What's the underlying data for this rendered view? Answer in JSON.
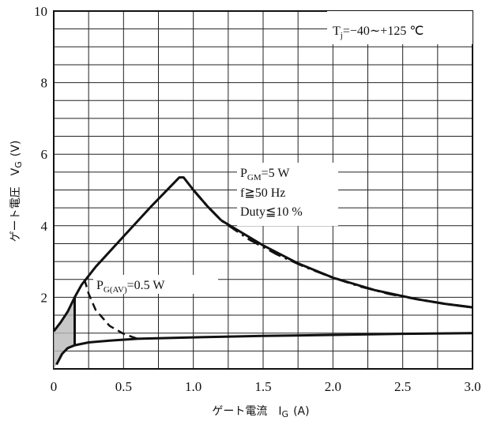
{
  "chart_data": {
    "type": "line",
    "title": "",
    "xlabel": {
      "main": "ゲート電流　I",
      "sub": "G",
      "unit": "(A)"
    },
    "ylabel": {
      "main": "ゲート電圧　V",
      "sub": "G",
      "unit": "(V)"
    },
    "xlim": [
      0,
      3.0
    ],
    "ylim": [
      0,
      10
    ],
    "x_ticks": [
      "0",
      "0.5",
      "1.0",
      "1.5",
      "2.0",
      "2.5",
      "3.0"
    ],
    "y_ticks": [
      "2",
      "4",
      "6",
      "8",
      "10"
    ],
    "grid": true,
    "annotations": {
      "tj": {
        "base": "T",
        "sub": "j",
        "rest": "=−40∼+125 ℃"
      },
      "pgm": {
        "base": "P",
        "sub": "GM",
        "rest": "=5 W"
      },
      "freq": "f≧50 Hz",
      "duty": "Duty≦10 %",
      "pgav": {
        "base": "P",
        "sub": "G(AV)",
        "rest": "=0.5 W"
      }
    },
    "series": [
      {
        "style": "solid",
        "points": [
          [
            0.02,
            0.12
          ],
          [
            0.06,
            0.42
          ],
          [
            0.1,
            0.58
          ],
          [
            0.15,
            0.66
          ],
          [
            0.25,
            0.74
          ],
          [
            0.4,
            0.79
          ],
          [
            0.6,
            0.84
          ],
          [
            1.0,
            0.88
          ],
          [
            1.5,
            0.92
          ],
          [
            2.0,
            0.95
          ],
          [
            2.5,
            0.98
          ],
          [
            3.0,
            1.0
          ]
        ]
      },
      {
        "style": "solid",
        "points": [
          [
            0.0,
            1.05
          ],
          [
            0.05,
            1.3
          ],
          [
            0.1,
            1.6
          ],
          [
            0.15,
            2.0
          ],
          [
            0.2,
            2.35
          ],
          [
            0.3,
            2.85
          ],
          [
            0.5,
            3.7
          ],
          [
            0.7,
            4.55
          ],
          [
            0.9,
            5.35
          ],
          [
            0.93,
            5.35
          ],
          [
            1.0,
            5.0
          ],
          [
            1.1,
            4.55
          ],
          [
            1.2,
            4.15
          ]
        ]
      },
      {
        "style": "solid",
        "points": [
          [
            1.2,
            4.15
          ],
          [
            1.5,
            3.45
          ]
        ]
      },
      {
        "style": "dash-dot",
        "points": [
          [
            1.0,
            5.0
          ],
          [
            1.1,
            4.55
          ],
          [
            1.2,
            4.15
          ],
          [
            1.4,
            3.62
          ],
          [
            1.6,
            3.2
          ],
          [
            1.8,
            2.85
          ],
          [
            2.0,
            2.55
          ],
          [
            2.2,
            2.3
          ],
          [
            2.4,
            2.1
          ],
          [
            2.6,
            1.95
          ],
          [
            2.8,
            1.82
          ],
          [
            3.0,
            1.72
          ]
        ]
      },
      {
        "style": "solid",
        "points": [
          [
            1.5,
            3.45
          ],
          [
            1.75,
            2.95
          ],
          [
            2.0,
            2.55
          ],
          [
            2.3,
            2.2
          ],
          [
            2.6,
            1.95
          ],
          [
            2.8,
            1.82
          ],
          [
            3.0,
            1.72
          ]
        ]
      },
      {
        "style": "dashed",
        "points": [
          [
            0.22,
            2.5
          ],
          [
            0.25,
            2.1
          ],
          [
            0.3,
            1.65
          ],
          [
            0.4,
            1.2
          ],
          [
            0.5,
            0.98
          ],
          [
            0.6,
            0.84
          ]
        ]
      },
      {
        "style": "solid",
        "points": [
          [
            0.15,
            0.66
          ],
          [
            0.15,
            2.0
          ]
        ]
      }
    ],
    "shaded_region": [
      [
        0.0,
        0.0
      ],
      [
        0.0,
        1.05
      ],
      [
        0.05,
        1.3
      ],
      [
        0.1,
        1.6
      ],
      [
        0.15,
        2.0
      ],
      [
        0.15,
        0.66
      ],
      [
        0.1,
        0.58
      ],
      [
        0.06,
        0.42
      ],
      [
        0.02,
        0.12
      ],
      [
        0.0,
        0.0
      ]
    ]
  }
}
